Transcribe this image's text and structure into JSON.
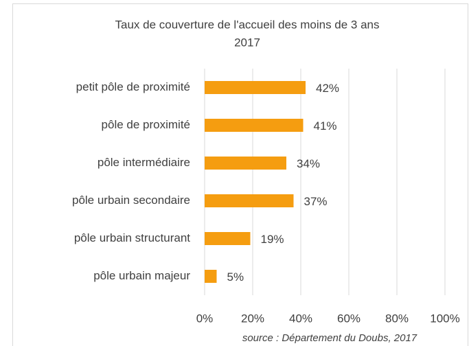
{
  "chart_data": {
    "type": "bar",
    "orientation": "horizontal",
    "title": "Taux de couverture de l'accueil des moins de 3 ans",
    "subtitle": "2017",
    "categories": [
      "petit pôle de proximité",
      "pôle de proximité",
      "pôle intermédiaire",
      "pôle urbain secondaire",
      "pôle urbain structurant",
      "pôle urbain majeur"
    ],
    "values": [
      42,
      41,
      34,
      37,
      19,
      5
    ],
    "value_labels": [
      "42%",
      "41%",
      "34%",
      "37%",
      "19%",
      "5%"
    ],
    "color": "#f59d10",
    "xlim": [
      0,
      100
    ],
    "xticks": [
      {
        "value": 0,
        "label": "0%"
      },
      {
        "value": 20,
        "label": "20%"
      },
      {
        "value": 40,
        "label": "40%"
      },
      {
        "value": 60,
        "label": "60%"
      },
      {
        "value": 80,
        "label": "80%"
      },
      {
        "value": 100,
        "label": "100%"
      }
    ],
    "grid": true,
    "source": "source : Département du Doubs, 2017"
  }
}
